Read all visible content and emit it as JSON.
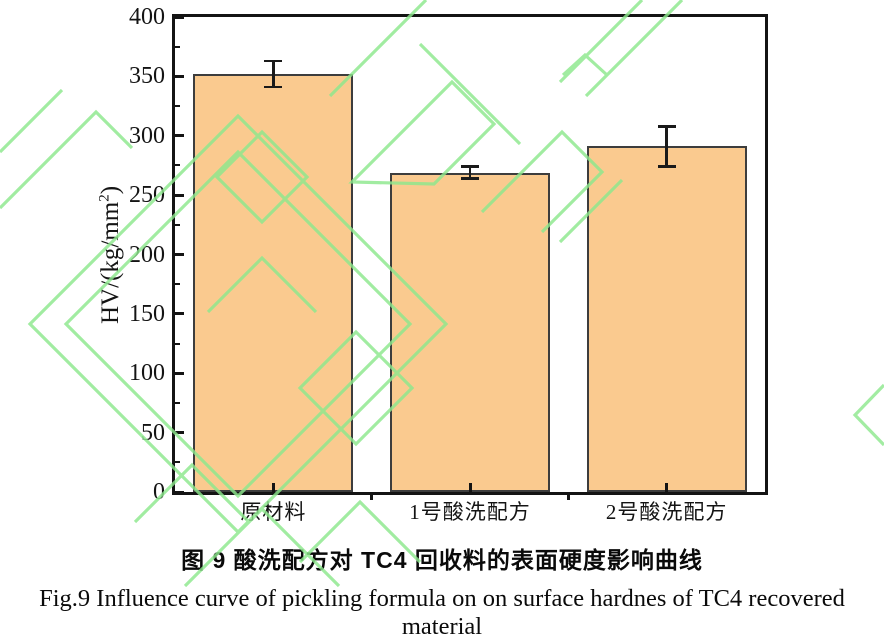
{
  "figure": {
    "caption_zh": "图 9 酸洗配方对 TC4 回收料的表面硬度影响曲线",
    "caption_en": "Fig.9 Influence curve of pickling formula on on surface hardnes of TC4 recovered material"
  },
  "chart_data": {
    "type": "bar",
    "categories": [
      "原材料",
      "1号酸洗配方",
      "2号酸洗配方"
    ],
    "values": [
      352,
      269,
      291
    ],
    "error_bars": [
      11,
      5,
      17
    ],
    "ylabel": {
      "prefix": "HV/(kg/mm",
      "sup": "2",
      "suffix": ")"
    },
    "xlabel": "",
    "ylim": [
      0,
      400
    ],
    "ytick_major_step": 50,
    "ytick_minor_step": 25,
    "ytick_labels": [
      "0",
      "50",
      "100",
      "150",
      "200",
      "250",
      "300",
      "350",
      "400"
    ],
    "grid": false,
    "bar_color": "#FACA8F",
    "bar_border_color": "#3D3D3D",
    "axis_color": "#141414",
    "error_bar_color": "#1A1A1A",
    "watermark_color": "#8DE88D"
  }
}
